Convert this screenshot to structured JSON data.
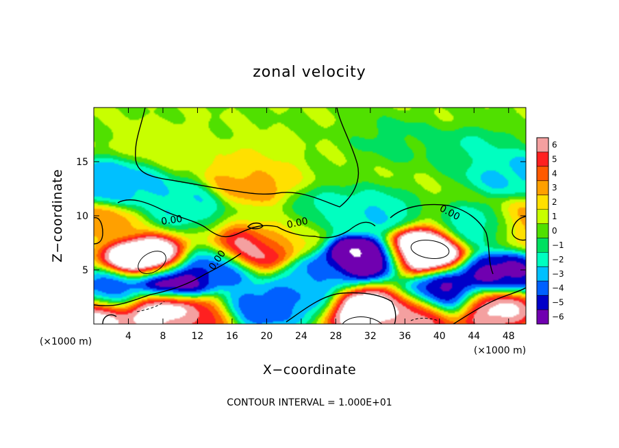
{
  "chart_data": {
    "type": "heatmap",
    "title": "zonal velocity",
    "xlabel": "X−coordinate",
    "ylabel": "Z−coordinate",
    "x_units": "(×1000 m)",
    "y_units": "(×1000 m)",
    "xlim": [
      0,
      50
    ],
    "ylim": [
      0,
      20
    ],
    "xticks": [
      4,
      8,
      12,
      16,
      20,
      24,
      28,
      32,
      36,
      40,
      44,
      48
    ],
    "xtick_labels": [
      "4",
      "8",
      "12",
      "16",
      "20",
      "24",
      "28",
      "32",
      "36",
      "40",
      "44",
      "48"
    ],
    "yticks": [
      5,
      10,
      15
    ],
    "ytick_labels": [
      "5",
      "10",
      "15"
    ],
    "colorbar": {
      "min": -6,
      "max": 6,
      "levels": [
        6,
        5,
        4,
        3,
        2,
        1,
        0,
        -1,
        -2,
        -3,
        -4,
        -5,
        -6
      ],
      "labels": [
        "6",
        "5",
        "4",
        "3",
        "2",
        "1",
        "0",
        "−1",
        "−2",
        "−3",
        "−4",
        "−5",
        "−6"
      ],
      "colors": [
        "#f4a0a0",
        "#ff2020",
        "#ff5a00",
        "#ffa000",
        "#ffe000",
        "#c8ff00",
        "#50e000",
        "#00e060",
        "#00ffc0",
        "#00c0ff",
        "#0060ff",
        "#0000c8",
        "#7000b0"
      ],
      "saturation_high": "#ffffff",
      "placement": "right"
    },
    "contour_label": "0.00",
    "contour_interval_text": "CONTOUR INTERVAL = 1.000E+01",
    "features": [
      {
        "x": 18,
        "y": 13.2,
        "value": 3.2
      },
      {
        "x": 18,
        "y": 14.8,
        "value": 1.5
      },
      {
        "x": 9,
        "y": 16.5,
        "value": 1.0
      },
      {
        "x": 35,
        "y": 17,
        "value": -0.8
      },
      {
        "x": 44,
        "y": 16,
        "value": -1.6
      },
      {
        "x": 48,
        "y": 14,
        "value": -2.8
      },
      {
        "x": 1,
        "y": 13,
        "value": -3.5
      },
      {
        "x": 4,
        "y": 12.8,
        "value": -2.8
      },
      {
        "x": 10,
        "y": 11.2,
        "value": -2.5
      },
      {
        "x": 32,
        "y": 10.3,
        "value": -2.5
      },
      {
        "x": 28,
        "y": 10.5,
        "value": -1.8
      },
      {
        "x": 45,
        "y": 9,
        "value": -2.5
      },
      {
        "x": 6,
        "y": 6,
        "value": 9
      },
      {
        "x": 18.5,
        "y": 6.8,
        "value": 7
      },
      {
        "x": 38,
        "y": 6.8,
        "value": 9
      },
      {
        "x": 31,
        "y": 6.2,
        "value": -8
      },
      {
        "x": 14.5,
        "y": 5.2,
        "value": -4.5
      },
      {
        "x": 26,
        "y": 4.5,
        "value": -3.5
      },
      {
        "x": 47,
        "y": 4.6,
        "value": -6
      },
      {
        "x": 9,
        "y": 3.8,
        "value": -7
      },
      {
        "x": 2,
        "y": 3,
        "value": -4.5
      },
      {
        "x": 41,
        "y": 2.7,
        "value": -6
      },
      {
        "x": 8,
        "y": 1.3,
        "value": 8
      },
      {
        "x": 31,
        "y": 1.3,
        "value": 8
      },
      {
        "x": 37,
        "y": 0.8,
        "value": 6
      },
      {
        "x": 46,
        "y": 1.5,
        "value": 7
      },
      {
        "x": 0.5,
        "y": 0.8,
        "value": 7
      },
      {
        "x": 12,
        "y": 0.6,
        "value": 5
      },
      {
        "x": 19,
        "y": 1.5,
        "value": -4.2
      },
      {
        "x": 24,
        "y": 2.2,
        "value": -3.5
      },
      {
        "x": 0.5,
        "y": 9.5,
        "value": 3
      },
      {
        "x": 49.5,
        "y": 9.2,
        "value": 3
      },
      {
        "x": 22,
        "y": 8,
        "value": 1.5
      }
    ]
  }
}
